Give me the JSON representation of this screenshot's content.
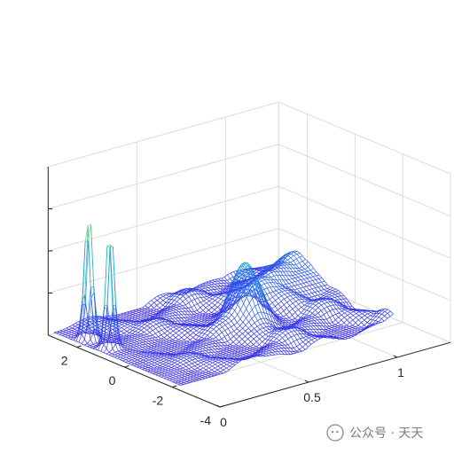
{
  "chart_data": {
    "type": "3d-mesh",
    "title": "",
    "xlabel": "",
    "ylabel": "",
    "zlabel": "",
    "x_ticks": [
      "0",
      "0.5",
      "1"
    ],
    "y_ticks": [
      "-4",
      "-2",
      "0",
      "2"
    ],
    "xlim": [
      0,
      1.3
    ],
    "ylim": [
      -4,
      3.2
    ],
    "grid": true,
    "colormap": "parula",
    "peaks": [
      {
        "x": 0.08,
        "y": 2.1,
        "relative_height": 1.0
      },
      {
        "x": 0.08,
        "y": 1.2,
        "relative_height": 0.95
      },
      {
        "x": 0.72,
        "y": 0.2,
        "relative_height": 0.45
      }
    ]
  },
  "colors": {
    "colormap_low": "#3b28e6",
    "colormap_mid": "#1fb3c4",
    "colormap_high": "#f9fb0e",
    "axis": "#262626",
    "grid": "#dcdcdc"
  },
  "watermark": {
    "text": "公众号 · 天天"
  }
}
